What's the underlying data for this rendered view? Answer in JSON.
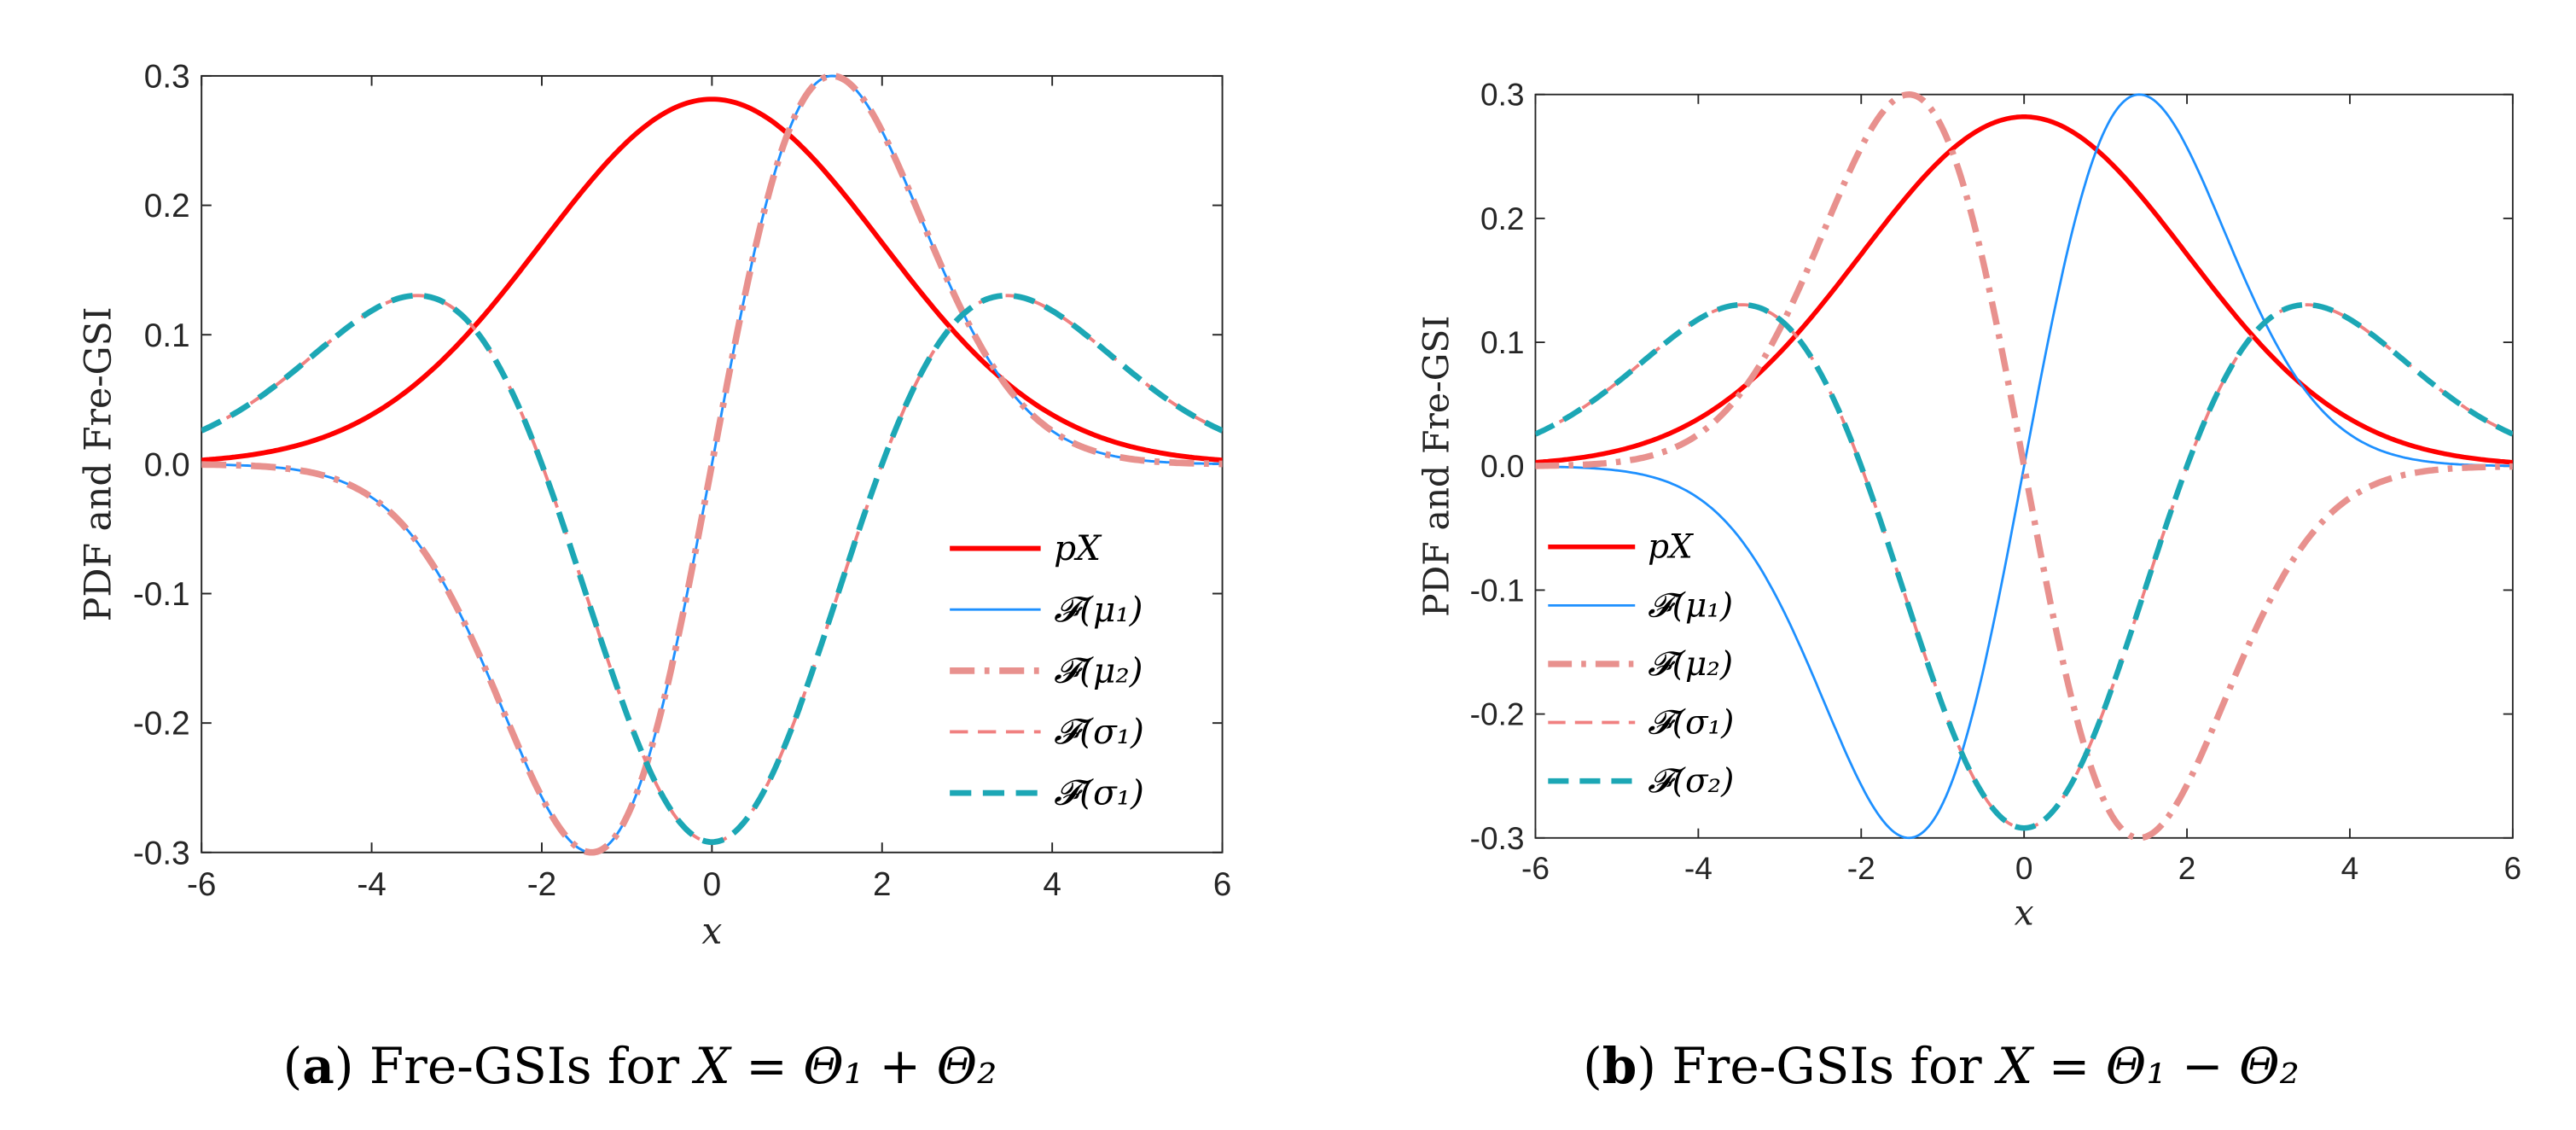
{
  "chart_data": [
    {
      "type": "line",
      "panel_tag": "a",
      "caption_label": "Fre-GSIs for ",
      "caption_math": "X = Θ₁ + Θ₂",
      "xlabel": "x",
      "ylabel": "PDF and Fre-GSI",
      "xlim": [
        -6,
        6
      ],
      "ylim": [
        -0.3,
        0.3
      ],
      "xticks": [
        -6,
        -4,
        -2,
        0,
        2,
        4,
        6
      ],
      "xtick_labels": [
        "-6",
        "-4",
        "-2",
        "0",
        "2",
        "4",
        "6"
      ],
      "yticks": [
        -0.3,
        -0.2,
        -0.1,
        0.0,
        0.1,
        0.2,
        0.3
      ],
      "ytick_labels": [
        "-0.3",
        "-0.2",
        "-0.1",
        "0.0",
        "0.1",
        "0.2",
        "0.3"
      ],
      "legend_position": "bottom-right",
      "series": [
        {
          "name": "p_X",
          "label": "pX",
          "func": "pdf",
          "color": "#ff0000",
          "style": "solid",
          "width": 6
        },
        {
          "name": "F(mu1)",
          "label": "𝓕(μ₁)",
          "func": "dmu",
          "sign": 1,
          "color": "#1e90ff",
          "style": "solid",
          "width": 3
        },
        {
          "name": "F(mu2)",
          "label": "𝓕(μ₂)",
          "func": "dmu",
          "sign": 1,
          "color": "#e8918e",
          "style": "dashdot",
          "width": 8
        },
        {
          "name": "F(sigma1)",
          "label": "𝓕(σ₁)",
          "func": "dsig",
          "color": "#f08080",
          "style": "dashed",
          "width": 4
        },
        {
          "name": "F(sigma1)",
          "label": "𝓕(σ₁)",
          "func": "dsig",
          "color": "#1ca7b5",
          "style": "dashed-heavy",
          "width": 7
        }
      ]
    },
    {
      "type": "line",
      "panel_tag": "b",
      "caption_label": "Fre-GSIs for ",
      "caption_math": "X = Θ₁ − Θ₂",
      "xlabel": "x",
      "ylabel": "PDF and Fre-GSI",
      "xlim": [
        -6,
        6
      ],
      "ylim": [
        -0.3,
        0.3
      ],
      "xticks": [
        -6,
        -4,
        -2,
        0,
        2,
        4,
        6
      ],
      "xtick_labels": [
        "-6",
        "-4",
        "-2",
        "0",
        "2",
        "4",
        "6"
      ],
      "yticks": [
        -0.3,
        -0.2,
        -0.1,
        0.0,
        0.1,
        0.2,
        0.3
      ],
      "ytick_labels": [
        "-0.3",
        "-0.2",
        "-0.1",
        "0.0",
        "0.1",
        "0.2",
        "0.3"
      ],
      "legend_position": "bottom-left",
      "series": [
        {
          "name": "p_X",
          "label": "pX",
          "func": "pdf",
          "color": "#ff0000",
          "style": "solid",
          "width": 6
        },
        {
          "name": "F(mu1)",
          "label": "𝓕(μ₁)",
          "func": "dmu",
          "sign": 1,
          "color": "#1e90ff",
          "style": "solid",
          "width": 3
        },
        {
          "name": "F(mu2)",
          "label": "𝓕(μ₂)",
          "func": "dmu",
          "sign": -1,
          "color": "#e8918e",
          "style": "dashdot",
          "width": 8
        },
        {
          "name": "F(sigma1)",
          "label": "𝓕(σ₁)",
          "func": "dsig",
          "color": "#f08080",
          "style": "dashed",
          "width": 4
        },
        {
          "name": "F(sigma2)",
          "label": "𝓕(σ₂)",
          "func": "dsig",
          "color": "#1ca7b5",
          "style": "dashed-heavy",
          "width": 7
        }
      ]
    }
  ]
}
